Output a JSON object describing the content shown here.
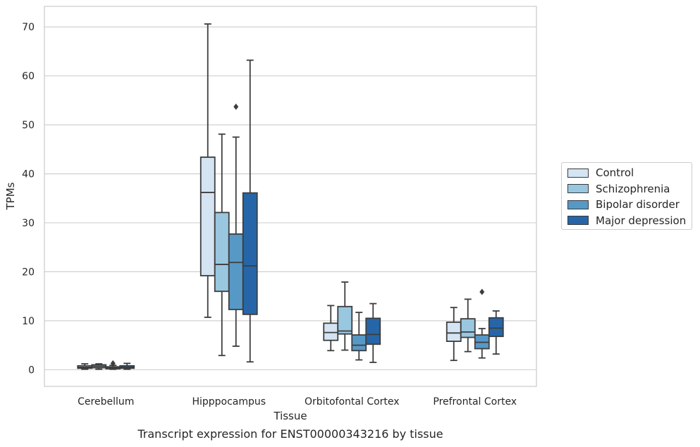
{
  "caption": "Transcript expression for ENST00000343216 by tissue",
  "chart_data": {
    "type": "box",
    "xlabel": "Tissue",
    "ylabel": "TPMs",
    "ylim": [
      -3.4,
      74.2
    ],
    "yticks": [
      0,
      10,
      20,
      30,
      40,
      50,
      60,
      70
    ],
    "grid": "horizontal",
    "legend_position": "right",
    "categories": [
      "Cerebellum",
      "Hipppocampus",
      "Orbitofontal Cortex",
      "Prefrontal Cortex"
    ],
    "series": [
      {
        "name": "Control",
        "color": "#d4e4f3",
        "boxes": [
          {
            "min": 0.1,
            "q1": 0.3,
            "median": 0.5,
            "q3": 0.8,
            "max": 1.2,
            "outliers": []
          },
          {
            "min": 10.7,
            "q1": 19.2,
            "median": 36.2,
            "q3": 43.4,
            "max": 70.6,
            "outliers": []
          },
          {
            "min": 3.9,
            "q1": 6.0,
            "median": 7.6,
            "q3": 9.5,
            "max": 13.1,
            "outliers": []
          },
          {
            "min": 1.9,
            "q1": 5.8,
            "median": 7.5,
            "q3": 9.7,
            "max": 12.7,
            "outliers": []
          }
        ]
      },
      {
        "name": "Schizophrenia",
        "color": "#9ac7e0",
        "boxes": [
          {
            "min": 0.1,
            "q1": 0.4,
            "median": 0.7,
            "q3": 1.0,
            "max": 1.2,
            "outliers": []
          },
          {
            "min": 2.9,
            "q1": 16.0,
            "median": 21.5,
            "q3": 32.1,
            "max": 48.1,
            "outliers": []
          },
          {
            "min": 4.0,
            "q1": 7.3,
            "median": 7.9,
            "q3": 12.9,
            "max": 17.9,
            "outliers": []
          },
          {
            "min": 3.7,
            "q1": 6.6,
            "median": 7.7,
            "q3": 10.4,
            "max": 14.4,
            "outliers": []
          }
        ]
      },
      {
        "name": "Bipolar disorder",
        "color": "#5799c6",
        "boxes": [
          {
            "min": 0.1,
            "q1": 0.2,
            "median": 0.4,
            "q3": 0.6,
            "max": 0.9,
            "outliers": [
              1.3
            ]
          },
          {
            "min": 4.8,
            "q1": 12.3,
            "median": 21.9,
            "q3": 27.7,
            "max": 47.5,
            "outliers": [
              53.7
            ]
          },
          {
            "min": 2.0,
            "q1": 3.9,
            "median": 5.0,
            "q3": 7.1,
            "max": 11.7,
            "outliers": []
          },
          {
            "min": 2.4,
            "q1": 4.3,
            "median": 5.6,
            "q3": 7.1,
            "max": 8.4,
            "outliers": [
              15.9
            ]
          }
        ]
      },
      {
        "name": "Major depression",
        "color": "#2666a8",
        "boxes": [
          {
            "min": 0.1,
            "q1": 0.3,
            "median": 0.5,
            "q3": 0.8,
            "max": 1.3,
            "outliers": []
          },
          {
            "min": 1.6,
            "q1": 11.3,
            "median": 21.2,
            "q3": 36.1,
            "max": 63.2,
            "outliers": []
          },
          {
            "min": 1.5,
            "q1": 5.2,
            "median": 7.2,
            "q3": 10.5,
            "max": 13.5,
            "outliers": []
          },
          {
            "min": 3.2,
            "q1": 6.8,
            "median": 8.5,
            "q3": 10.6,
            "max": 12.0,
            "outliers": []
          }
        ]
      }
    ]
  }
}
